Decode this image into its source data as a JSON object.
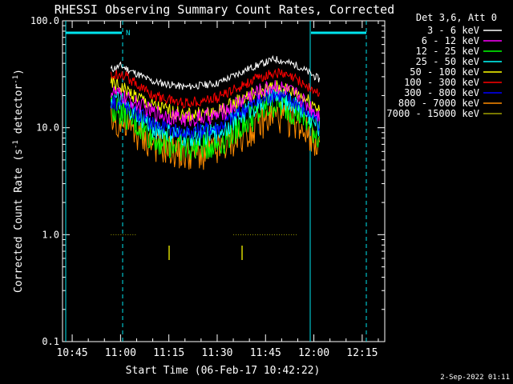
{
  "chart_data": {
    "type": "line",
    "title": "RHESSI Observing Summary Count Rates, Corrected",
    "xlabel": "Start Time (06-Feb-17 10:42:22)",
    "ylabel_main": "Corrected Count Rate (s",
    "ylabel_sup1": "-1",
    "ylabel_mid": " detector",
    "ylabel_sup2": "-1",
    "ylabel_end": ")",
    "y_scale": "log",
    "ylim": [
      0.1,
      100.0
    ],
    "xlim": [
      "10:42",
      "12:22"
    ],
    "x_ticks": [
      "10:45",
      "11:00",
      "11:15",
      "11:30",
      "11:45",
      "12:00",
      "12:15"
    ],
    "y_ticks": [
      "0.1",
      "1.0",
      "10.0",
      "100.0"
    ],
    "legend_position": "top-right",
    "legend_header": "Det 3,6, Att 0",
    "night_marker": "N",
    "timestamp": "2-Sep-2022 01:11",
    "series": [
      {
        "name": "3 - 6 keV",
        "color": "#ffffff",
        "x": [
          "10:57",
          "11:00",
          "11:10",
          "11:20",
          "11:30",
          "11:40",
          "11:48",
          "11:55",
          "12:02"
        ],
        "values": [
          35,
          38,
          27,
          24,
          26,
          36,
          44,
          38,
          28
        ]
      },
      {
        "name": "6 - 12 keV",
        "color": "#ff00ff",
        "x": [
          "10:57",
          "11:00",
          "11:10",
          "11:20",
          "11:30",
          "11:40",
          "11:48",
          "11:55",
          "12:02"
        ],
        "values": [
          22,
          20,
          14,
          12,
          13,
          20,
          25,
          20,
          13
        ]
      },
      {
        "name": "12 - 25 keV",
        "color": "#00ff00",
        "x": [
          "10:57",
          "11:00",
          "11:10",
          "11:20",
          "11:30",
          "11:40",
          "11:48",
          "11:55",
          "12:02"
        ],
        "values": [
          16,
          14,
          8,
          6.5,
          7,
          12,
          17,
          14,
          8
        ]
      },
      {
        "name": "25 - 50 keV",
        "color": "#00ffff",
        "x": [
          "10:57",
          "11:00",
          "11:10",
          "11:20",
          "11:30",
          "11:40",
          "11:48",
          "11:55",
          "12:02"
        ],
        "values": [
          19,
          17,
          10,
          8,
          9,
          15,
          20,
          16,
          10
        ]
      },
      {
        "name": "50 - 100 keV",
        "color": "#ffff00",
        "x": [
          "10:57",
          "11:00",
          "11:10",
          "11:20",
          "11:30",
          "11:40",
          "11:48",
          "11:55",
          "12:02"
        ],
        "values": [
          26,
          24,
          16,
          13,
          14,
          20,
          24,
          21,
          15
        ]
      },
      {
        "name": "100 - 300 keV",
        "color": "#ff0000",
        "x": [
          "10:57",
          "11:00",
          "11:10",
          "11:20",
          "11:30",
          "11:40",
          "11:48",
          "11:55",
          "12:02"
        ],
        "values": [
          30,
          33,
          20,
          17,
          19,
          27,
          33,
          28,
          20
        ]
      },
      {
        "name": "300 - 800 keV",
        "color": "#0000ff",
        "x": [
          "10:57",
          "11:00",
          "11:10",
          "11:20",
          "11:30",
          "11:40",
          "11:48",
          "11:55",
          "12:02"
        ],
        "values": [
          18,
          17,
          11,
          9,
          10,
          16,
          21,
          17,
          11
        ]
      },
      {
        "name": "800 - 7000 keV",
        "color": "#ff8c00",
        "x": [
          "10:57",
          "11:00",
          "11:10",
          "11:20",
          "11:30",
          "11:40",
          "11:48",
          "11:55",
          "12:02"
        ],
        "values": [
          12,
          11,
          7,
          5.5,
          6,
          9.5,
          13,
          11,
          7
        ]
      },
      {
        "name": "7000 - 15000 keV",
        "color": "#a0a000",
        "x": [
          "10:57",
          "11:05",
          "11:35",
          "11:55"
        ],
        "values": [
          1.0,
          1.0,
          1.0,
          1.0
        ]
      }
    ]
  }
}
